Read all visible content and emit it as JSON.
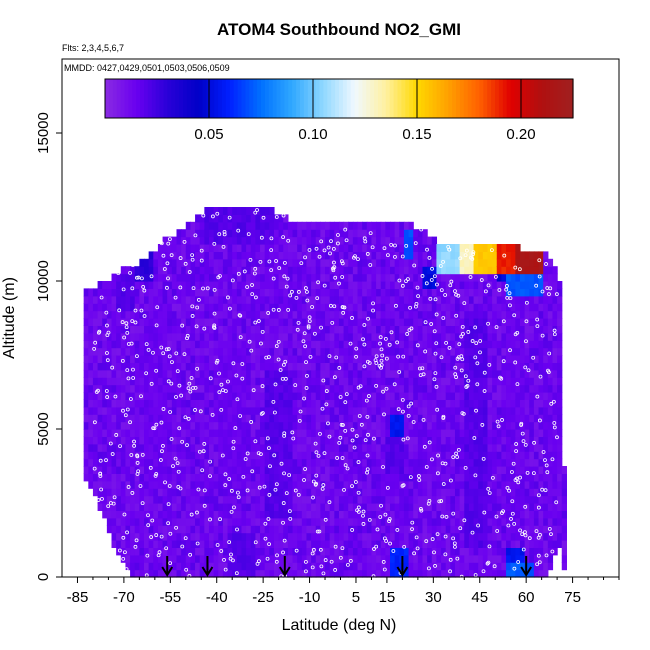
{
  "chart_data": {
    "type": "heatmap",
    "title": "ATOM4 Southbound NO2_GMI",
    "flights_note": "Flts: 2,3,4,5,6,7",
    "dates_note": "MMDD: 0427,0429,0501,0503,0506,0509",
    "xlabel": "Latitude (deg N)",
    "ylabel": "Altitude (m)",
    "xlim": [
      -90,
      90
    ],
    "ylim": [
      0,
      17500
    ],
    "x_ticks": [
      -85,
      -70,
      -55,
      -40,
      -25,
      -10,
      5,
      15,
      30,
      45,
      60,
      75
    ],
    "y_ticks": [
      0,
      5000,
      10000,
      15000
    ],
    "y_tick_labels": [
      "0",
      "5000",
      "10000",
      "15000"
    ],
    "colorbar": {
      "range": [
        0.0,
        0.225
      ],
      "ticks": [
        0.05,
        0.1,
        0.15,
        0.2
      ],
      "tick_labels": [
        "0.05",
        "0.10",
        "0.15",
        "0.20"
      ],
      "colors": [
        "#8a2be2",
        "#6a00f0",
        "#2a00d8",
        "#0000c8",
        "#0020ff",
        "#0070ff",
        "#30a8ff",
        "#90d8ff",
        "#f0f8ff",
        "#fff0a0",
        "#ffd800",
        "#ffa000",
        "#ff6000",
        "#e00000",
        "#b01010",
        "#a02020"
      ]
    },
    "grid": false,
    "coverage": {
      "lat": [
        -86,
        -83,
        -76,
        -73,
        -68,
        -62,
        -56,
        -50,
        -44,
        -40,
        -34,
        -28,
        -22,
        -16,
        -10,
        -4,
        2,
        8,
        14,
        18,
        22,
        26,
        30,
        36,
        42,
        48,
        54,
        60,
        66,
        71,
        73
      ],
      "top": [
        0,
        9800,
        9900,
        10300,
        10500,
        10800,
        11500,
        11800,
        12400,
        12400,
        12400,
        12400,
        12400,
        12100,
        12000,
        12000,
        11900,
        11900,
        11900,
        11900,
        11900,
        11800,
        11400,
        11300,
        11200,
        11200,
        11200,
        11100,
        11100,
        10000,
        0
      ],
      "bottom": [
        0,
        3500,
        2000,
        1000,
        0,
        0,
        0,
        0,
        0,
        0,
        0,
        0,
        0,
        0,
        0,
        0,
        0,
        0,
        0,
        0,
        0,
        0,
        0,
        0,
        0,
        0,
        0,
        0,
        0,
        1000,
        0
      ]
    },
    "features": [
      {
        "lat": [
          -72,
          -67
        ],
        "alt": [
          9000,
          10200
        ],
        "value": 0.02
      },
      {
        "lat": [
          -67,
          -61
        ],
        "alt": [
          9900,
          11000
        ],
        "value": 0.03
      },
      {
        "lat": [
          -44,
          -22
        ],
        "alt": [
          11200,
          12400
        ],
        "value": 0.02
      },
      {
        "lat": [
          -64,
          -56
        ],
        "alt": [
          3000,
          9000
        ],
        "value": 0.015
      },
      {
        "lat": [
          -40,
          -30
        ],
        "alt": [
          3000,
          8000
        ],
        "value": 0.015
      },
      {
        "lat": [
          -24,
          -16
        ],
        "alt": [
          2000,
          7000
        ],
        "value": 0.02
      },
      {
        "lat": [
          -36,
          -28
        ],
        "alt": [
          0,
          1500
        ],
        "value": 0.02
      },
      {
        "lat": [
          16,
          20
        ],
        "alt": [
          4800,
          5600
        ],
        "value": 0.055
      },
      {
        "lat": [
          15,
          20
        ],
        "alt": [
          3500,
          4800
        ],
        "value": 0.02
      },
      {
        "lat": [
          16,
          22
        ],
        "alt": [
          0,
          1000
        ],
        "value": 0.06
      },
      {
        "lat": [
          21,
          24
        ],
        "alt": [
          10800,
          11800
        ],
        "value": 0.07
      },
      {
        "lat": [
          26,
          31
        ],
        "alt": [
          9800,
          10600
        ],
        "value": 0.05
      },
      {
        "lat": [
          31,
          38
        ],
        "alt": [
          10300,
          11200
        ],
        "value": 0.105
      },
      {
        "lat": [
          38,
          43
        ],
        "alt": [
          10300,
          11200
        ],
        "value": 0.13
      },
      {
        "lat": [
          43,
          50
        ],
        "alt": [
          10300,
          11200
        ],
        "value": 0.155
      },
      {
        "lat": [
          50,
          57
        ],
        "alt": [
          10300,
          11200
        ],
        "value": 0.19
      },
      {
        "lat": [
          57,
          66
        ],
        "alt": [
          10300,
          11200
        ],
        "value": 0.215
      },
      {
        "lat": [
          50,
          54
        ],
        "alt": [
          10000,
          10300
        ],
        "value": 0.05
      },
      {
        "lat": [
          54,
          66
        ],
        "alt": [
          9600,
          10300
        ],
        "value": 0.07
      },
      {
        "lat": [
          40,
          48
        ],
        "alt": [
          1000,
          9000
        ],
        "value": 0.02
      },
      {
        "lat": [
          53,
          60
        ],
        "alt": [
          1200,
          9500
        ],
        "value": 0.015
      },
      {
        "lat": [
          53,
          62
        ],
        "alt": [
          0,
          500
        ],
        "value": 0.07
      },
      {
        "lat": [
          54,
          60
        ],
        "alt": [
          500,
          1000
        ],
        "value": 0.055
      },
      {
        "lat": [
          66,
          70
        ],
        "alt": [
          2000,
          6000
        ],
        "value": 0.015
      }
    ],
    "markers": [
      {
        "lat": -56,
        "label": "↓"
      },
      {
        "lat": -43,
        "label": "↓"
      },
      {
        "lat": -18,
        "label": "↓"
      },
      {
        "lat": 20,
        "label": "↓"
      },
      {
        "lat": 60,
        "label": "↓"
      }
    ]
  }
}
